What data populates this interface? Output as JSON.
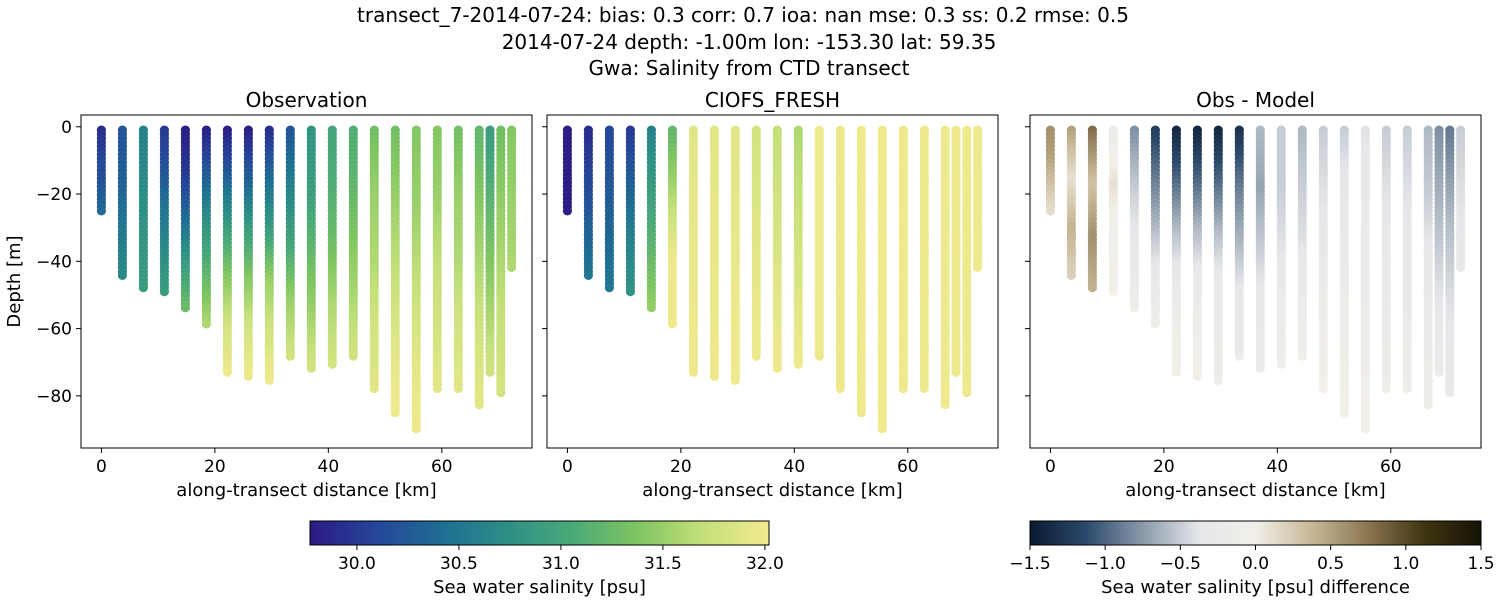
{
  "titles": [
    "transect_7-2014-07-24: bias: 0.3  corr: 0.7  ioa: nan  mse: 0.3  ss: 0.2  rmse: 0.5",
    "2014-07-24 depth: -1.00m lon: -153.30 lat: 59.35",
    "Gwa: Salinity from CTD transect"
  ],
  "chart_data": {
    "type": "scatter",
    "stations": [
      {
        "x": 0.0,
        "top": -1,
        "bottom": -26
      },
      {
        "x": 3.7,
        "top": -1,
        "bottom": -45
      },
      {
        "x": 7.4,
        "top": -1,
        "bottom": -49
      },
      {
        "x": 11.1,
        "top": -1,
        "bottom": -50
      },
      {
        "x": 14.8,
        "top": -1,
        "bottom": -55
      },
      {
        "x": 18.5,
        "top": -1,
        "bottom": -59
      },
      {
        "x": 22.2,
        "top": -1,
        "bottom": -74
      },
      {
        "x": 25.9,
        "top": -1,
        "bottom": -75
      },
      {
        "x": 29.6,
        "top": -1,
        "bottom": -76
      },
      {
        "x": 33.3,
        "top": -1,
        "bottom": -69
      },
      {
        "x": 37.0,
        "top": -1,
        "bottom": -72
      },
      {
        "x": 40.7,
        "top": -1,
        "bottom": -71
      },
      {
        "x": 44.4,
        "top": -1,
        "bottom": -69
      },
      {
        "x": 48.1,
        "top": -1,
        "bottom": -78
      },
      {
        "x": 51.8,
        "top": -1,
        "bottom": -86
      },
      {
        "x": 55.5,
        "top": -1,
        "bottom": -91
      },
      {
        "x": 59.2,
        "top": -1,
        "bottom": -78
      },
      {
        "x": 62.9,
        "top": -1,
        "bottom": -78
      },
      {
        "x": 66.6,
        "top": -1,
        "bottom": -83
      },
      {
        "x": 68.5,
        "top": -1,
        "bottom": -74
      },
      {
        "x": 70.4,
        "top": -1,
        "bottom": -80
      },
      {
        "x": 72.3,
        "top": -1,
        "bottom": -43
      }
    ],
    "panels": [
      {
        "title": "Observation",
        "xlabel": "along-transect distance [km]",
        "ylabel": "Depth [m]",
        "xlim": [
          -3.6,
          75.9
        ],
        "ylim": [
          -95.5,
          3.5
        ],
        "xticks": [
          0,
          20,
          40,
          60
        ],
        "yticks": [
          0,
          -20,
          -40,
          -60,
          -80
        ],
        "show_yticklabels": true,
        "colormap": "salinity",
        "profiles": [
          [
            29.9,
            30.1,
            30.2,
            30.4
          ],
          [
            30.2,
            30.3,
            30.5,
            30.7
          ],
          [
            30.6,
            30.7,
            30.8,
            30.9
          ],
          [
            30.0,
            30.2,
            30.5,
            30.7,
            30.9
          ],
          [
            29.8,
            30.0,
            30.4,
            30.9,
            31.3
          ],
          [
            29.8,
            30.3,
            30.8,
            31.2,
            31.6
          ],
          [
            29.8,
            30.3,
            30.9,
            31.4,
            31.8,
            32.0
          ],
          [
            29.8,
            30.3,
            30.9,
            31.4,
            31.8,
            32.0
          ],
          [
            29.9,
            30.4,
            30.9,
            31.5,
            31.8,
            32.0
          ],
          [
            30.2,
            30.6,
            31.0,
            31.5,
            31.8
          ],
          [
            30.8,
            30.9,
            31.2,
            31.5,
            31.8
          ],
          [
            31.0,
            31.1,
            31.3,
            31.6,
            31.8
          ],
          [
            31.1,
            31.2,
            31.4,
            31.6,
            31.8
          ],
          [
            31.3,
            31.5,
            31.6,
            31.8,
            31.9
          ],
          [
            31.3,
            31.5,
            31.7,
            31.9,
            32.0
          ],
          [
            31.4,
            31.5,
            31.7,
            31.9,
            32.0
          ],
          [
            31.4,
            31.5,
            31.7,
            31.8,
            31.9
          ],
          [
            31.3,
            31.5,
            31.6,
            31.8,
            31.9
          ],
          [
            31.2,
            31.4,
            31.6,
            31.8,
            31.9
          ],
          [
            30.9,
            31.2,
            31.5,
            31.8
          ],
          [
            31.3,
            31.5,
            31.7,
            31.8
          ],
          [
            31.4,
            31.5,
            31.6
          ]
        ]
      },
      {
        "title": "CIOFS_FRESH",
        "xlabel": "along-transect distance [km]",
        "ylabel": "",
        "xlim": [
          -3.6,
          75.9
        ],
        "ylim": [
          -95.5,
          3.5
        ],
        "xticks": [
          0,
          20,
          40,
          60
        ],
        "yticks": [
          0,
          -20,
          -40,
          -60,
          -80
        ],
        "show_yticklabels": false,
        "colormap": "salinity",
        "profiles": [
          [
            29.8,
            29.8,
            29.8
          ],
          [
            29.9,
            30.2,
            30.5
          ],
          [
            30.1,
            30.3,
            30.5
          ],
          [
            30.0,
            30.3,
            30.6,
            30.8
          ],
          [
            30.6,
            30.9,
            31.2,
            31.5
          ],
          [
            31.2,
            31.6,
            32.0,
            32.0
          ],
          [
            31.9,
            32.0
          ],
          [
            31.9,
            32.0
          ],
          [
            31.9,
            32.0
          ],
          [
            31.8,
            32.0
          ],
          [
            31.7,
            32.0
          ],
          [
            31.6,
            32.0
          ],
          [
            32.0,
            32.0
          ],
          [
            32.0,
            32.0
          ],
          [
            32.0,
            32.0
          ],
          [
            32.0,
            32.0
          ],
          [
            32.0,
            32.0
          ],
          [
            32.0,
            32.0
          ],
          [
            32.0,
            32.0
          ],
          [
            32.0,
            32.0
          ],
          [
            32.0,
            32.0
          ],
          [
            32.0,
            32.0
          ]
        ]
      },
      {
        "title": "Obs - Model",
        "xlabel": "along-transect distance [km]",
        "ylabel": "",
        "xlim": [
          -3.6,
          75.9
        ],
        "ylim": [
          -95.5,
          3.5
        ],
        "xticks": [
          0,
          20,
          40,
          60
        ],
        "yticks": [
          0,
          -20,
          -40,
          -60,
          -80
        ],
        "show_yticklabels": false,
        "colormap": "difference",
        "profiles": [
          [
            0.6,
            0.5,
            0.3,
            0.1
          ],
          [
            0.5,
            0.1,
            0.4,
            0.2
          ],
          [
            0.8,
            0.3,
            0.6,
            0.4
          ],
          [
            -0.2,
            0.1,
            -0.1,
            0.0
          ],
          [
            -0.8,
            -0.5,
            -0.3,
            -0.1
          ],
          [
            -1.2,
            -0.8,
            -0.4,
            -0.1
          ],
          [
            -1.4,
            -1.0,
            -0.6,
            -0.3,
            -0.1,
            0.0
          ],
          [
            -1.4,
            -1.0,
            -0.6,
            -0.3,
            -0.1,
            0.0
          ],
          [
            -1.4,
            -1.0,
            -0.6,
            -0.3,
            -0.2,
            -0.1
          ],
          [
            -1.3,
            -0.9,
            -0.6,
            -0.3,
            -0.2
          ],
          [
            -0.6,
            -0.7,
            -0.5,
            -0.3,
            -0.2
          ],
          [
            -0.5,
            -0.5,
            -0.4,
            -0.2,
            -0.1
          ],
          [
            -0.6,
            -0.5,
            -0.4,
            -0.2,
            -0.1
          ],
          [
            -0.5,
            -0.4,
            -0.3,
            -0.1,
            0.0
          ],
          [
            -0.5,
            -0.3,
            -0.2,
            -0.1,
            0.0
          ],
          [
            -0.4,
            -0.3,
            -0.2,
            -0.1,
            0.0
          ],
          [
            -0.5,
            -0.4,
            -0.3,
            -0.2,
            -0.1
          ],
          [
            -0.5,
            -0.4,
            -0.3,
            -0.2,
            -0.1
          ],
          [
            -0.6,
            -0.5,
            -0.3,
            -0.2,
            -0.1
          ],
          [
            -0.8,
            -0.6,
            -0.4,
            -0.2
          ],
          [
            -0.9,
            -0.6,
            -0.4,
            -0.3
          ],
          [
            -0.5,
            -0.4,
            -0.3
          ]
        ]
      }
    ],
    "colorbars": [
      {
        "label": "Sea water salinity [psu]",
        "vmin": 29.77,
        "vmax": 32.02,
        "ticks": [
          30.0,
          30.5,
          31.0,
          31.5,
          32.0
        ],
        "ticklabels": [
          "30.0",
          "30.5",
          "31.0",
          "31.5",
          "32.0"
        ],
        "colormap": "salinity"
      },
      {
        "label": "Sea water salinity [psu] difference",
        "vmin": -1.5,
        "vmax": 1.5,
        "ticks": [
          -1.5,
          -1.0,
          -0.5,
          0.0,
          0.5,
          1.0,
          1.5
        ],
        "ticklabels": [
          "−1.5",
          "−1.0",
          "−0.5",
          "0.0",
          "0.5",
          "1.0",
          "1.5"
        ],
        "colormap": "difference"
      }
    ],
    "colormaps": {
      "salinity": [
        "#2b1b83",
        "#26459a",
        "#1e6e93",
        "#2c8f86",
        "#4aa978",
        "#7fc561",
        "#c4e07a",
        "#f2ea8e"
      ],
      "difference": [
        "#0a1a30",
        "#2c4a6c",
        "#8a9aaa",
        "#e6e7ea",
        "#f2efe8",
        "#c8b896",
        "#8a7550",
        "#3f3510",
        "#161205"
      ]
    }
  }
}
